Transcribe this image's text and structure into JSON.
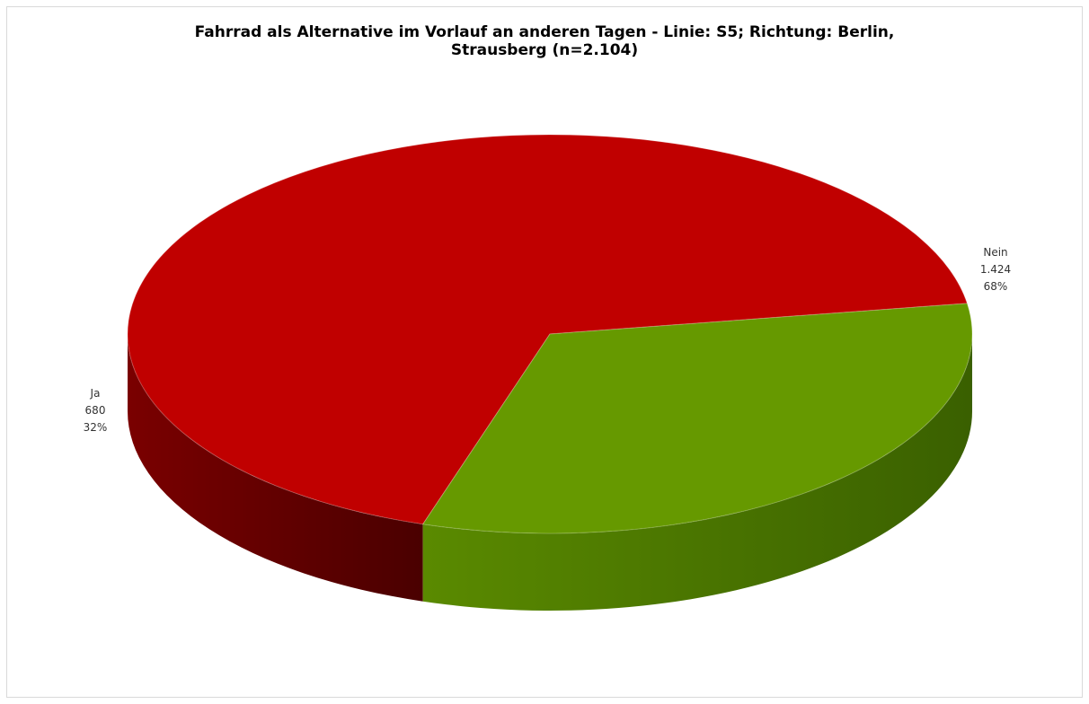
{
  "chart_data": {
    "type": "pie",
    "title_lines": [
      "Fahrrad als Alternative im Vorlauf an anderen Tagen - Linie: S5; Richtung: Berlin,",
      "Strausberg (n=2.104)"
    ],
    "style": "3d",
    "slices": [
      {
        "name": "Nein",
        "value": 1424,
        "value_label": "1.424",
        "percent_label": "68%",
        "color": "#c00000",
        "side_color_light": "#7a0000",
        "side_color_dark": "#4a0000"
      },
      {
        "name": "Ja",
        "value": 680,
        "value_label": "680",
        "percent_label": "32%",
        "color": "#669900",
        "side_color_light": "#5a8a00",
        "side_color_dark": "#3a6000"
      }
    ]
  }
}
